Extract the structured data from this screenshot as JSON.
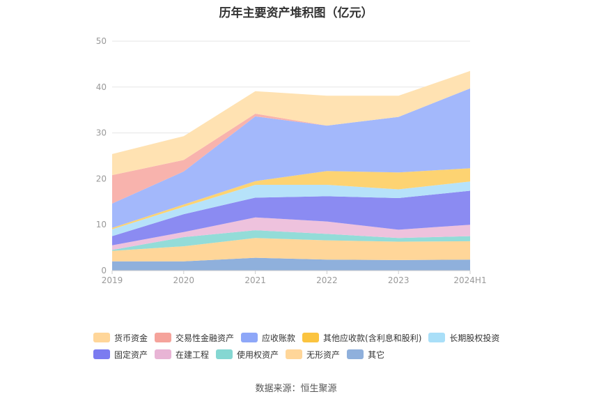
{
  "chart_data": {
    "type": "area",
    "stacked": true,
    "title": "历年主要资产堆积图（亿元）",
    "x": [
      "2019",
      "2020",
      "2021",
      "2022",
      "2023",
      "2024H1"
    ],
    "ylim": [
      0,
      50
    ],
    "yticks": [
      0,
      10,
      20,
      30,
      40,
      50
    ],
    "grid": true,
    "legend_position": "bottom",
    "series": [
      {
        "name": "其它",
        "color": "#8fb0dc",
        "values": [
          2.0,
          2.0,
          2.8,
          2.4,
          2.3,
          2.4
        ]
      },
      {
        "name": "无形资产",
        "color": "#ffd699",
        "values": [
          2.3,
          3.3,
          4.3,
          4.2,
          4.0,
          4.0
        ]
      },
      {
        "name": "使用权资产",
        "color": "#93dcd8",
        "values": [
          0.2,
          2.0,
          1.7,
          1.4,
          0.8,
          1.1
        ]
      },
      {
        "name": "在建工程",
        "color": "#eec2dd",
        "values": [
          1.0,
          1.1,
          2.8,
          2.7,
          1.8,
          2.5
        ]
      },
      {
        "name": "固定资产",
        "color": "#8b8bf2",
        "values": [
          2.0,
          3.9,
          4.3,
          5.5,
          6.9,
          7.4
        ]
      },
      {
        "name": "长期股权投资",
        "color": "#b6e2fa",
        "values": [
          1.5,
          1.6,
          2.8,
          2.5,
          1.9,
          2.0
        ]
      },
      {
        "name": "其他应收款(含利息和股利)",
        "color": "#fdd372",
        "values": [
          0.3,
          0.5,
          0.8,
          3.0,
          3.7,
          2.9
        ]
      },
      {
        "name": "应收账款",
        "color": "#a3b8fb",
        "values": [
          5.3,
          7.2,
          14.1,
          9.9,
          12.1,
          17.4
        ]
      },
      {
        "name": "交易性金融资产",
        "color": "#f8b3ad",
        "values": [
          6.2,
          2.5,
          0.6,
          0.0,
          0.0,
          0.0
        ]
      },
      {
        "name": "货币资金",
        "color": "#ffe2b2",
        "values": [
          4.6,
          5.2,
          4.9,
          6.5,
          4.6,
          3.8
        ]
      }
    ]
  },
  "legend": {
    "rows": [
      [
        {
          "label": "货币资金",
          "color": "#ffd699"
        },
        {
          "label": "交易性金融资产",
          "color": "#f5a39b"
        },
        {
          "label": "应收账款",
          "color": "#8ea7f8"
        },
        {
          "label": "其他应收款(含利息和股利)",
          "color": "#fbc440"
        },
        {
          "label": "长期股权投资",
          "color": "#a9dff8"
        }
      ],
      [
        {
          "label": "固定资产",
          "color": "#7b7bf0"
        },
        {
          "label": "在建工程",
          "color": "#e8b4d5"
        },
        {
          "label": "使用权资产",
          "color": "#85d7d2"
        },
        {
          "label": "无形资产",
          "color": "#ffd699"
        },
        {
          "label": "其它",
          "color": "#8fb0dc"
        }
      ]
    ]
  },
  "source": "数据来源：恒生聚源"
}
